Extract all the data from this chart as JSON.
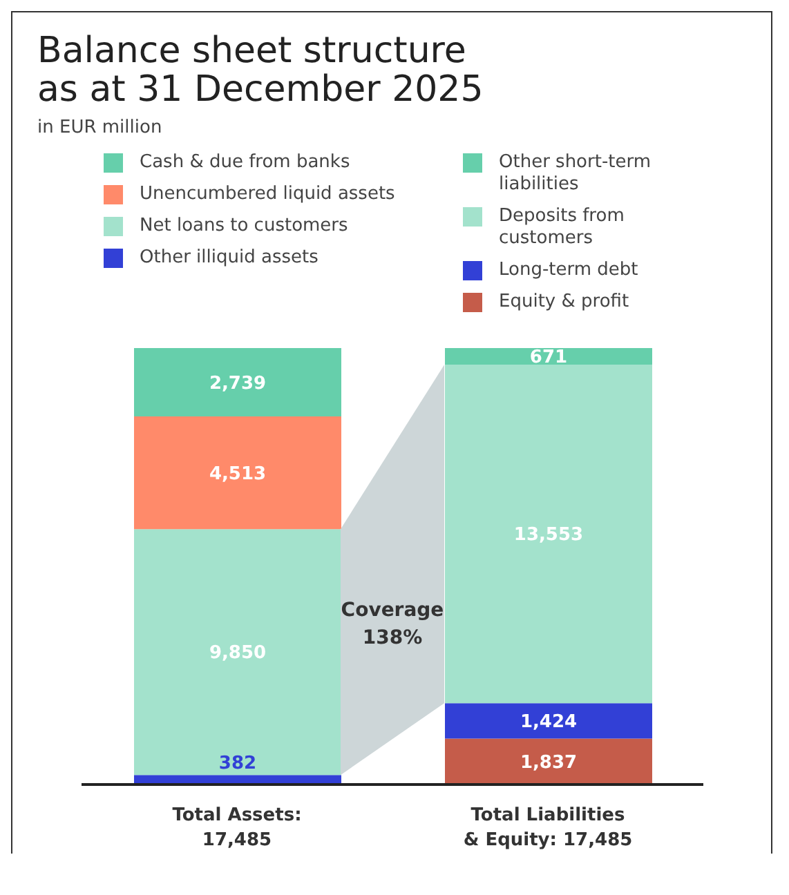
{
  "chart_data": {
    "type": "bar",
    "title": "Balance sheet structure as at 31 December 2025",
    "subtitle": "in EUR million",
    "categories": [
      "Total Assets:\n17,485",
      "Total Liabilities\n& Equity: 17,485"
    ],
    "stacked": true,
    "legend": "top",
    "annotations": [
      "Coverage 138%"
    ],
    "series": [
      {
        "name": "Other illiquid assets",
        "color": "#3240d6",
        "values": [
          382,
          null
        ],
        "value_labels": [
          "382",
          null
        ]
      },
      {
        "name": "Net loans to customers",
        "color": "#a3e2cc",
        "values": [
          9850,
          null
        ],
        "value_labels": [
          "9,850",
          null
        ]
      },
      {
        "name": "Unencumbered liquid assets",
        "color": "#ff8a6a",
        "values": [
          4513,
          null
        ],
        "value_labels": [
          "4,513",
          null
        ]
      },
      {
        "name": "Cash & due from banks",
        "color": "#66cfab",
        "values": [
          2739,
          null
        ],
        "value_labels": [
          "2,739",
          null
        ]
      },
      {
        "name": "Equity & profit",
        "color": "#c55c4a",
        "values": [
          null,
          1837
        ],
        "value_labels": [
          null,
          "1,837"
        ]
      },
      {
        "name": "Long-term debt",
        "color": "#3240d6",
        "values": [
          null,
          1424
        ],
        "value_labels": [
          null,
          "1,424"
        ]
      },
      {
        "name": "Deposits from customers",
        "color": "#a3e2cc",
        "values": [
          null,
          13553
        ],
        "value_labels": [
          null,
          "13,553"
        ]
      },
      {
        "name": "Other short-term liabilities",
        "color": "#66cfab",
        "values": [
          null,
          671
        ],
        "value_labels": [
          null,
          "671"
        ]
      }
    ]
  }
}
